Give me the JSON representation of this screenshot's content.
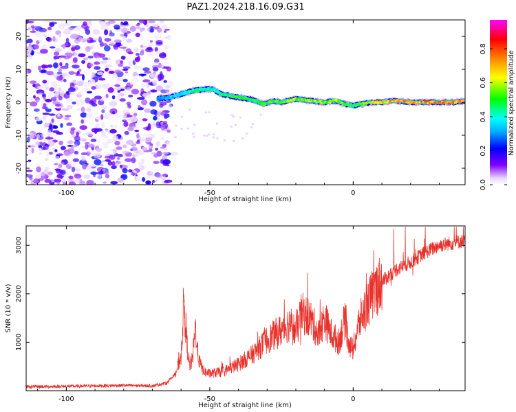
{
  "title": "PAZ1.2024.218.16.09.G31",
  "chart_data": [
    {
      "type": "heatmap",
      "xlabel": "Height of straight line (km)",
      "ylabel": "Frequency (Hz)",
      "xlim": [
        -114,
        39
      ],
      "ylim": [
        -25,
        25
      ],
      "xticks": [
        -100,
        -50,
        0
      ],
      "yticks": [
        -20,
        -10,
        0,
        10,
        20
      ],
      "colorbar": {
        "label": "Normalized spectral amplitude",
        "range": [
          0,
          0.97
        ],
        "ticks": [
          0.0,
          0.2,
          0.4,
          0.6,
          0.8
        ],
        "colormap": [
          "#ffffff",
          "#8000ff",
          "#0000ff",
          "#00ffff",
          "#00ff00",
          "#ffff00",
          "#ff8000",
          "#ff0000",
          "#ff00ff"
        ]
      },
      "noise_region_x": [
        -114,
        -64
      ],
      "ridge": {
        "x": [
          -68,
          -64,
          -60,
          -56,
          -52,
          -49,
          -46,
          -43,
          -40,
          -36,
          -33,
          -31,
          -28,
          -25,
          -20,
          -15,
          -10,
          -6,
          -3,
          0,
          3,
          6,
          10,
          15,
          20,
          25,
          30,
          35,
          39
        ],
        "freq_hz": [
          1.0,
          1.5,
          2.5,
          3.5,
          4.0,
          4.0,
          2.5,
          2.0,
          1.5,
          1.0,
          0.0,
          -0.5,
          0.5,
          0.0,
          1.0,
          0.5,
          0.0,
          0.5,
          -0.5,
          -1.0,
          -0.5,
          0.0,
          0.0,
          0.5,
          0.0,
          0.0,
          0.0,
          0.0,
          0.5
        ],
        "amplitude": [
          0.3,
          0.35,
          0.4,
          0.45,
          0.45,
          0.45,
          0.45,
          0.5,
          0.55,
          0.55,
          0.5,
          0.55,
          0.55,
          0.6,
          0.6,
          0.6,
          0.6,
          0.6,
          0.55,
          0.5,
          0.6,
          0.65,
          0.7,
          0.75,
          0.75,
          0.75,
          0.8,
          0.8,
          0.75
        ]
      }
    },
    {
      "type": "line",
      "xlabel": "Height of straight line (km)",
      "ylabel": "SNR (10 * v/v)",
      "xlim": [
        -114,
        39
      ],
      "ylim": [
        0,
        3400
      ],
      "xticks": [
        -100,
        -50,
        0
      ],
      "yticks": [
        1000,
        2000,
        3000
      ],
      "color": "#e8312a",
      "series": [
        {
          "x": [
            -114,
            -100,
            -80,
            -70,
            -65,
            -62,
            -60,
            -59,
            -58,
            -57,
            -56,
            -55,
            -54,
            -53,
            -52,
            -50,
            -45,
            -40,
            -35,
            -30,
            -25,
            -22,
            -20,
            -18,
            -15,
            -12,
            -10,
            -8,
            -5,
            -3,
            -1,
            0,
            2,
            5,
            8,
            10,
            15,
            20,
            25,
            30,
            35,
            39
          ],
          "y": [
            80,
            90,
            110,
            100,
            160,
            350,
            700,
            1900,
            1000,
            500,
            650,
            1300,
            700,
            500,
            400,
            350,
            400,
            550,
            750,
            1050,
            1250,
            1400,
            1200,
            1600,
            1500,
            1150,
            1500,
            1200,
            1000,
            1450,
            900,
            850,
            1400,
            1800,
            2100,
            2250,
            2500,
            2650,
            2850,
            3000,
            3050,
            3100
          ]
        }
      ]
    }
  ]
}
